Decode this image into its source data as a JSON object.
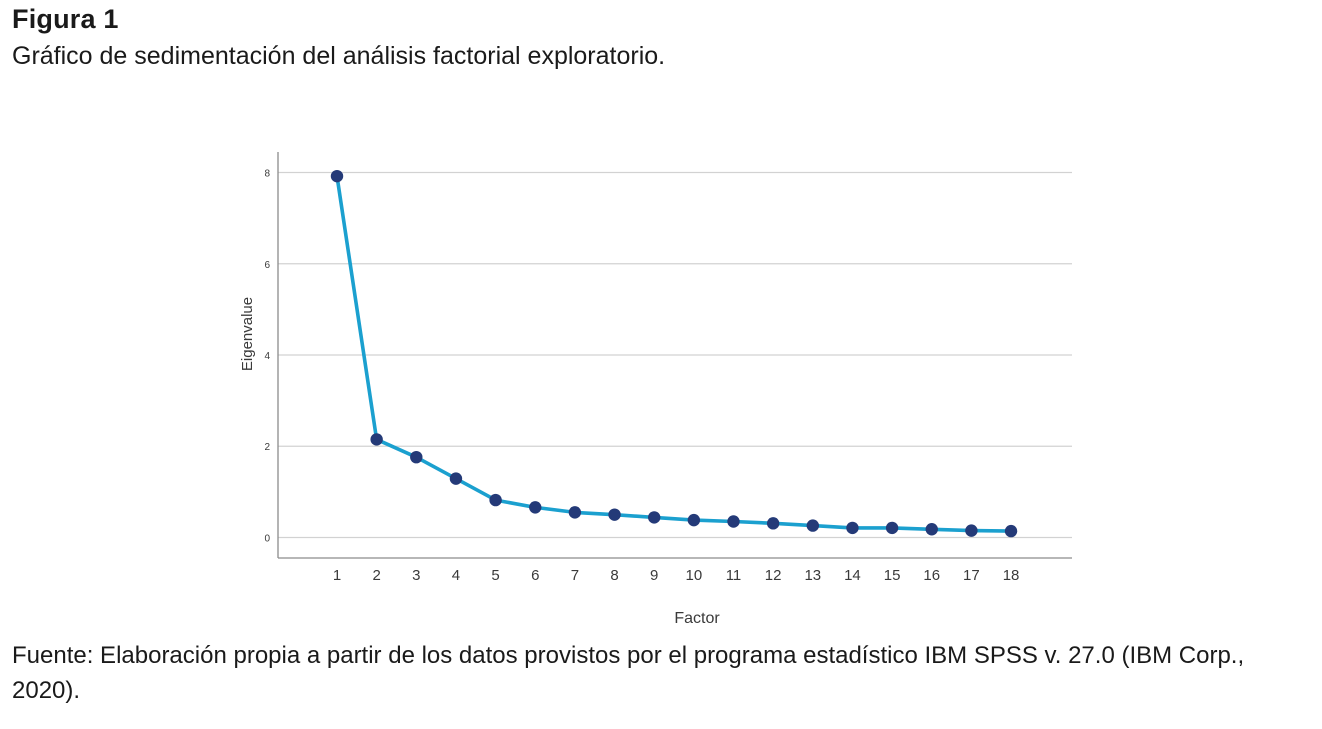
{
  "figure": {
    "label": "Figura 1",
    "title": "Gráfico de sedimentación del análisis factorial exploratorio.",
    "source_note": "Fuente: Elaboración propia a partir de los datos provistos por el programa estadístico IBM SPSS v. 27.0 (IBM Corp., 2020)."
  },
  "colors": {
    "line": "#1ba0cf",
    "marker": "#243a78",
    "grid": "#d2d2d2",
    "axis": "#8c8c8c",
    "text": "#3a3a3a"
  },
  "chart_data": {
    "type": "line",
    "title": "",
    "xlabel": "Factor",
    "ylabel": "Eigenvalue",
    "x": [
      1,
      2,
      3,
      4,
      5,
      6,
      7,
      8,
      9,
      10,
      11,
      12,
      13,
      14,
      15,
      16,
      17,
      18
    ],
    "x_tick_labels": [
      "1",
      "2",
      "3",
      "4",
      "5",
      "6",
      "7",
      "8",
      "9",
      "10",
      "11",
      "12",
      "13",
      "14",
      "15",
      "16",
      "17",
      "18"
    ],
    "y_ticks": [
      0,
      2,
      4,
      6,
      8
    ],
    "y_tick_labels": [
      "0",
      "2",
      "4",
      "6",
      "8"
    ],
    "ylim": [
      -0.45,
      8.45
    ],
    "grid": true,
    "legend": "none",
    "series": [
      {
        "values": [
          7.92,
          2.15,
          1.76,
          1.29,
          0.82,
          0.66,
          0.55,
          0.5,
          0.44,
          0.38,
          0.35,
          0.31,
          0.26,
          0.21,
          0.21,
          0.18,
          0.15,
          0.14
        ]
      }
    ]
  }
}
